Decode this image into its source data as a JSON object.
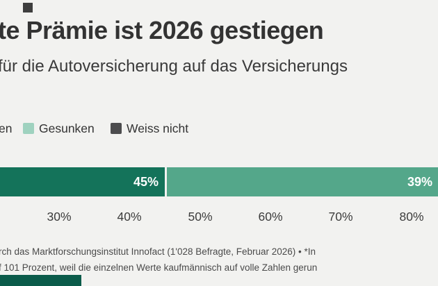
{
  "header": {
    "title": "te Prämie ist 2026 gestiegen",
    "subtitle": "für die Autoversicherung auf das Versicherungs"
  },
  "legend": {
    "items": [
      {
        "label": "en",
        "swatch_color": null
      },
      {
        "label": "Gesunken",
        "swatch_color": "#9fd2bf"
      },
      {
        "label": "Weiss nicht",
        "swatch_color": "#4c4c4e"
      }
    ]
  },
  "chart_data": {
    "type": "bar",
    "variant": "horizontal-stacked",
    "title": "te Prämie ist 2026 gestiegen",
    "subtitle": "für die Autoversicherung auf das Versicherungs",
    "series": [
      {
        "legend_label": "en",
        "value_pct": 45,
        "bar_label": "45%",
        "color": "#14735a"
      },
      {
        "legend_label": "Gesunken",
        "value_pct": 39,
        "bar_label": "39%",
        "color": "#54a78a"
      }
    ],
    "x_tick_labels": [
      "30%",
      "40%",
      "50%",
      "60%",
      "70%",
      "80%"
    ],
    "visible_axis_range_pct": [
      22,
      84
    ],
    "gridlines": false,
    "legend_position": "top"
  },
  "footnote": {
    "line1": "rch das Marktforschungsinstitut Innofact (1'028 Befragte, Februar 2026) • *In",
    "line2": "f 101 Prozent, weil die einzelnen Werte kaufmännisch auf volle Zahlen gerun"
  },
  "colors": {
    "background": "#f2f2f0",
    "title_text": "#333333",
    "segment_1": "#14735a",
    "segment_2": "#54a78a",
    "legend_gesunken": "#9fd2bf",
    "legend_weiss_nicht": "#4c4c4e",
    "bar_label_text": "#ffffff",
    "logo_block": "#0b5b4a",
    "kicker_square": "#3e3e3e"
  }
}
